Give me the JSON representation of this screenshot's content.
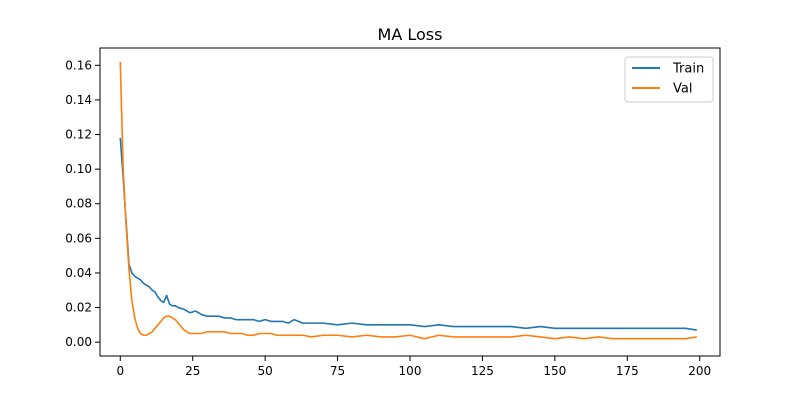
{
  "chart_data": {
    "type": "line",
    "title": "MA Loss",
    "xlabel": "",
    "ylabel": "",
    "xlim": [
      -7,
      207
    ],
    "ylim": [
      -0.008,
      0.17
    ],
    "xticks": [
      0,
      25,
      50,
      75,
      100,
      125,
      150,
      175,
      200
    ],
    "yticks": [
      0.0,
      0.02,
      0.04,
      0.06,
      0.08,
      0.1,
      0.12,
      0.14,
      0.16
    ],
    "grid": false,
    "legend": "top-right",
    "series": [
      {
        "name": "Train",
        "color": "#1f77b4",
        "x": [
          0,
          1,
          2,
          3,
          4,
          5,
          6,
          7,
          8,
          9,
          10,
          11,
          12,
          13,
          14,
          15,
          16,
          17,
          18,
          19,
          20,
          22,
          24,
          26,
          28,
          30,
          32,
          34,
          36,
          38,
          40,
          42,
          44,
          46,
          48,
          50,
          52,
          54,
          56,
          58,
          60,
          63,
          66,
          70,
          75,
          80,
          85,
          90,
          95,
          100,
          105,
          110,
          115,
          120,
          125,
          130,
          135,
          140,
          145,
          150,
          155,
          160,
          165,
          170,
          175,
          180,
          185,
          190,
          195,
          199
        ],
        "y": [
          0.118,
          0.095,
          0.07,
          0.045,
          0.04,
          0.038,
          0.037,
          0.036,
          0.034,
          0.033,
          0.032,
          0.03,
          0.029,
          0.026,
          0.024,
          0.023,
          0.027,
          0.022,
          0.021,
          0.021,
          0.02,
          0.019,
          0.017,
          0.018,
          0.016,
          0.015,
          0.015,
          0.015,
          0.014,
          0.014,
          0.013,
          0.013,
          0.013,
          0.013,
          0.012,
          0.013,
          0.012,
          0.012,
          0.012,
          0.011,
          0.013,
          0.011,
          0.011,
          0.011,
          0.01,
          0.011,
          0.01,
          0.01,
          0.01,
          0.01,
          0.009,
          0.01,
          0.009,
          0.009,
          0.009,
          0.009,
          0.009,
          0.008,
          0.009,
          0.008,
          0.008,
          0.008,
          0.008,
          0.008,
          0.008,
          0.008,
          0.008,
          0.008,
          0.008,
          0.007
        ]
      },
      {
        "name": "Val",
        "color": "#ff7f0e",
        "x": [
          0,
          1,
          2,
          3,
          4,
          5,
          6,
          7,
          8,
          9,
          10,
          11,
          12,
          13,
          14,
          15,
          16,
          17,
          18,
          19,
          20,
          22,
          24,
          26,
          28,
          30,
          32,
          34,
          36,
          38,
          40,
          42,
          44,
          46,
          48,
          50,
          52,
          54,
          56,
          58,
          60,
          63,
          66,
          70,
          75,
          80,
          85,
          90,
          95,
          100,
          105,
          110,
          115,
          120,
          125,
          130,
          135,
          140,
          145,
          150,
          155,
          160,
          165,
          170,
          175,
          180,
          185,
          190,
          195,
          199
        ],
        "y": [
          0.162,
          0.1,
          0.068,
          0.042,
          0.024,
          0.014,
          0.008,
          0.005,
          0.004,
          0.004,
          0.005,
          0.006,
          0.008,
          0.01,
          0.012,
          0.014,
          0.015,
          0.015,
          0.014,
          0.013,
          0.011,
          0.007,
          0.005,
          0.005,
          0.005,
          0.006,
          0.006,
          0.006,
          0.006,
          0.005,
          0.005,
          0.005,
          0.004,
          0.004,
          0.005,
          0.005,
          0.005,
          0.004,
          0.004,
          0.004,
          0.004,
          0.004,
          0.003,
          0.004,
          0.004,
          0.003,
          0.004,
          0.003,
          0.003,
          0.004,
          0.002,
          0.004,
          0.003,
          0.003,
          0.003,
          0.003,
          0.003,
          0.004,
          0.003,
          0.002,
          0.003,
          0.002,
          0.003,
          0.002,
          0.002,
          0.002,
          0.002,
          0.002,
          0.002,
          0.003
        ]
      }
    ]
  }
}
